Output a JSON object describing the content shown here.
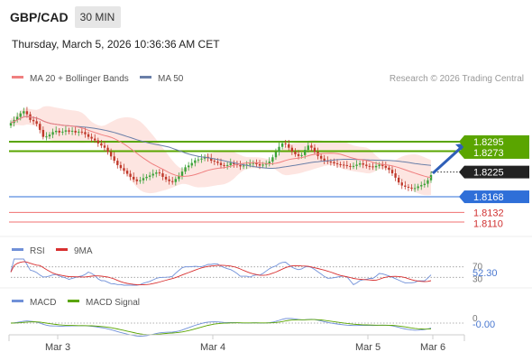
{
  "header": {
    "pair": "GBP/CAD",
    "timeframe": "30 MIN",
    "datetime": "Thursday, March 5, 2026 10:36:36 AM CET"
  },
  "legend_main": {
    "ma20": "MA 20 + Bollinger Bands",
    "ma50": "MA 50",
    "credit": "Research © 2026 Trading Central"
  },
  "legend_rsi": {
    "rsi": "RSI",
    "ma": "9MA"
  },
  "legend_macd": {
    "macd": "MACD",
    "signal": "MACD Signal"
  },
  "colors": {
    "resistance": "#5aa500",
    "support": "#2f6fd8",
    "level_red": "#f07070",
    "current": "#222222",
    "ma20": "#f08080",
    "bollinger_fill": "#fde0dc",
    "ma50": "#6a7fa8",
    "candle_up": "#3da33a",
    "candle_down": "#c0392b",
    "rsi": "#7090d8",
    "rsi_ma": "#d83030",
    "macd": "#7090d8",
    "macd_signal": "#5aa500",
    "arrow": "#2f5fb8"
  },
  "chart_data": {
    "type": "candlestick",
    "xlabels": [
      "Mar 3",
      "Mar 4",
      "Mar 5",
      "Mar 6"
    ],
    "price_range": [
      1.8085,
      1.8405
    ],
    "levels": [
      {
        "value": "1.8295",
        "kind": "resistance"
      },
      {
        "value": "1.8273",
        "kind": "resistance"
      },
      {
        "value": "1.8225",
        "kind": "current"
      },
      {
        "value": "1.8168",
        "kind": "support"
      },
      {
        "value": "1.8132",
        "kind": "red"
      },
      {
        "value": "1.8110",
        "kind": "red"
      }
    ],
    "close": [
      1.8338,
      1.8345,
      1.8352,
      1.836,
      1.8365,
      1.8358,
      1.8345,
      1.8342,
      1.8336,
      1.8322,
      1.8306,
      1.8307,
      1.8311,
      1.8317,
      1.832,
      1.8316,
      1.8318,
      1.8321,
      1.8318,
      1.832,
      1.8316,
      1.8318,
      1.8317,
      1.8312,
      1.8306,
      1.8302,
      1.8298,
      1.8291,
      1.8286,
      1.8281,
      1.8271,
      1.8261,
      1.8251,
      1.8241,
      1.8234,
      1.8228,
      1.8221,
      1.8214,
      1.8208,
      1.8204,
      1.8206,
      1.8211,
      1.8214,
      1.8217,
      1.8221,
      1.8224,
      1.8222,
      1.8214,
      1.8208,
      1.8204,
      1.8202,
      1.8209,
      1.8216,
      1.8226,
      1.8236,
      1.824,
      1.8246,
      1.8252,
      1.8254,
      1.8256,
      1.826,
      1.8257,
      1.8251,
      1.8249,
      1.8246,
      1.8241,
      1.8239,
      1.8241,
      1.8246,
      1.8243,
      1.8241,
      1.8238,
      1.824,
      1.8242,
      1.8244,
      1.8246,
      1.8243,
      1.824,
      1.8242,
      1.8244,
      1.8249,
      1.8259,
      1.8271,
      1.8283,
      1.8291,
      1.8289,
      1.8281,
      1.8272,
      1.8266,
      1.8262,
      1.8264,
      1.8276,
      1.8286,
      1.8281,
      1.8271,
      1.8262,
      1.8256,
      1.8251,
      1.8249,
      1.8248,
      1.8245,
      1.8243,
      1.8242,
      1.8241,
      1.8239,
      1.8238,
      1.8239,
      1.8242,
      1.8245,
      1.8242,
      1.8239,
      1.8238,
      1.8236,
      1.8239,
      1.8242,
      1.8239,
      1.8235,
      1.823,
      1.8222,
      1.8212,
      1.8201,
      1.8194,
      1.8191,
      1.8189,
      1.8187,
      1.8188,
      1.8192,
      1.8195,
      1.8198,
      1.8206,
      1.8218
    ],
    "rsi_range": [
      0,
      100
    ],
    "rsi_levels": [
      70,
      30
    ],
    "rsi_labels": [
      "70",
      "52.30",
      "30"
    ],
    "rsi_value": "52.30",
    "macd_zero_label": "0",
    "macd_value": "-0.00"
  }
}
